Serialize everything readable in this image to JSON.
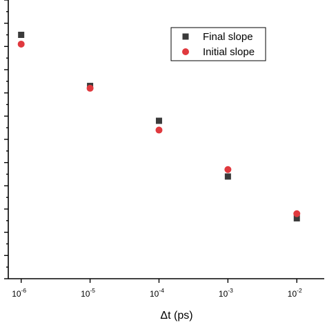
{
  "chart_data": {
    "type": "scatter",
    "x_scale": "log",
    "xlabel": "Δt (ps)",
    "ylabel": "",
    "xlim": [
      6.5e-07,
      0.025
    ],
    "ylim": [
      0,
      12
    ],
    "y_ticks": [
      0,
      1,
      2,
      3,
      4,
      5,
      6,
      7,
      8,
      9,
      10,
      11,
      12
    ],
    "x_ticks": [
      {
        "value": 1e-06,
        "base": "10",
        "exp": "-6"
      },
      {
        "value": 1e-05,
        "base": "10",
        "exp": "-5"
      },
      {
        "value": 0.0001,
        "base": "10",
        "exp": "-4"
      },
      {
        "value": 0.001,
        "base": "10",
        "exp": "-3"
      },
      {
        "value": 0.01,
        "base": "10",
        "exp": "-2"
      }
    ],
    "legend_position": "top-right",
    "series": [
      {
        "name": "Final slope",
        "marker": "square",
        "color": "#3a3a3a",
        "x": [
          1e-06,
          1e-05,
          0.0001,
          0.001,
          0.01
        ],
        "y": [
          10.5,
          8.3,
          6.8,
          4.4,
          2.6
        ]
      },
      {
        "name": "Initial slope",
        "marker": "circle",
        "color": "#e0393e",
        "x": [
          1e-06,
          1e-05,
          0.0001,
          0.001,
          0.01
        ],
        "y": [
          10.1,
          8.2,
          6.4,
          4.7,
          2.8
        ]
      }
    ]
  }
}
